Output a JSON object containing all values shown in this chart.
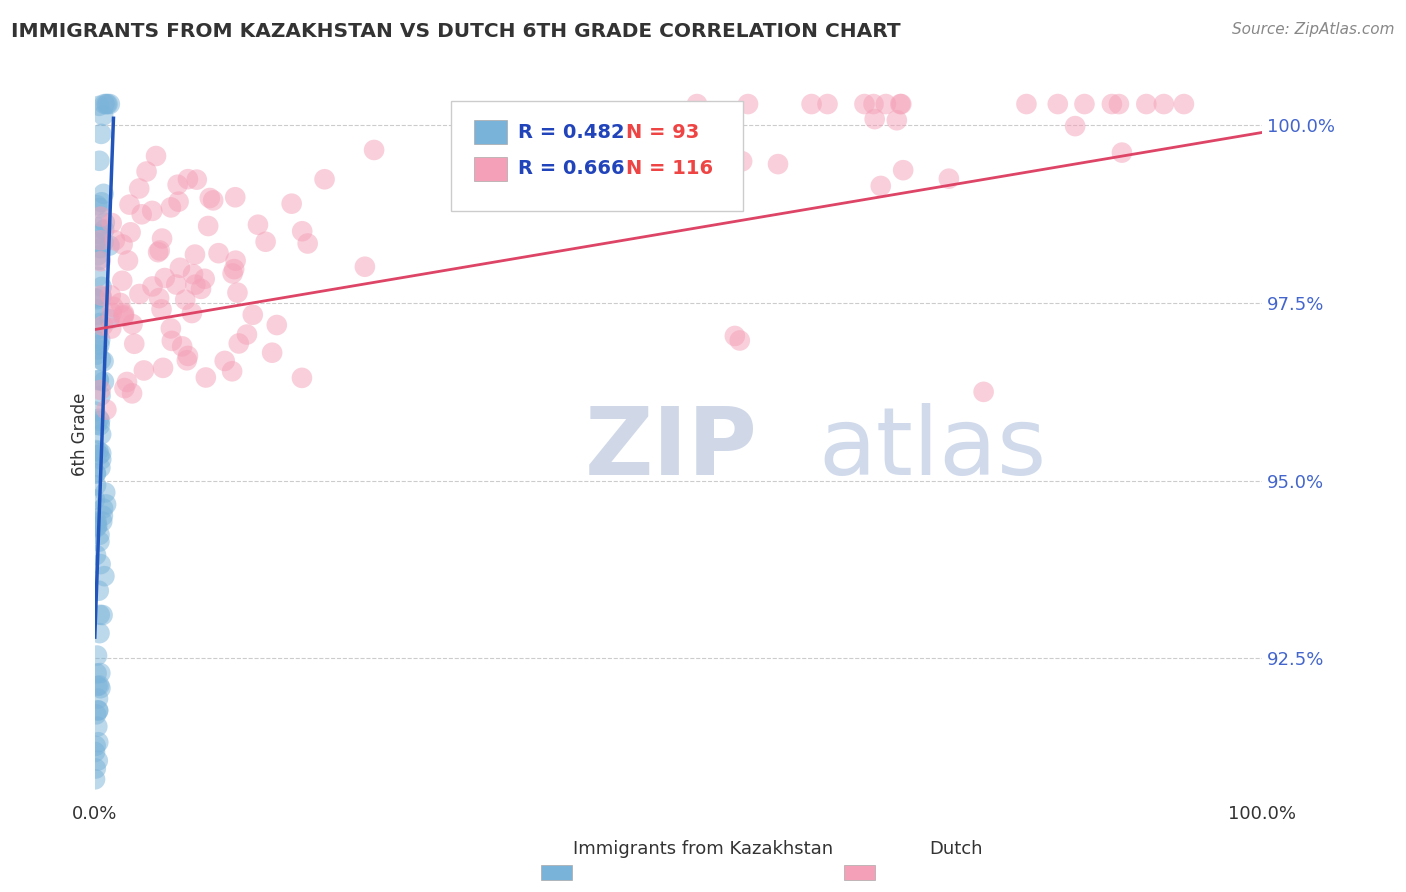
{
  "title": "IMMIGRANTS FROM KAZAKHSTAN VS DUTCH 6TH GRADE CORRELATION CHART",
  "source_text": "Source: ZipAtlas.com",
  "ylabel": "6th Grade",
  "xlim": [
    0.0,
    1.0
  ],
  "ylim": [
    0.905,
    1.008
  ],
  "yticks": [
    0.925,
    0.95,
    0.975,
    1.0
  ],
  "ytick_labels": [
    "92.5%",
    "95.0%",
    "97.5%",
    "100.0%"
  ],
  "xtick_labels": [
    "0.0%",
    "100.0%"
  ],
  "xticks": [
    0.0,
    1.0
  ],
  "blue_label": "Immigrants from Kazakhstan",
  "pink_label": "Dutch",
  "blue_color": "#7ab3d9",
  "pink_color": "#f4a0b8",
  "blue_R": 0.482,
  "blue_N": 93,
  "pink_R": 0.666,
  "pink_N": 116,
  "blue_line_color": "#2255bb",
  "pink_line_color": "#dd4466",
  "legend_R_color": "#2244bb",
  "legend_N_color": "#ee4444",
  "watermark_ZIP": "ZIP",
  "watermark_atlas": "atlas",
  "background_color": "#ffffff",
  "grid_color": "#cccccc",
  "title_color": "#333333",
  "axis_color": "#333333",
  "right_axis_color": "#4466cc",
  "source_color": "#888888"
}
